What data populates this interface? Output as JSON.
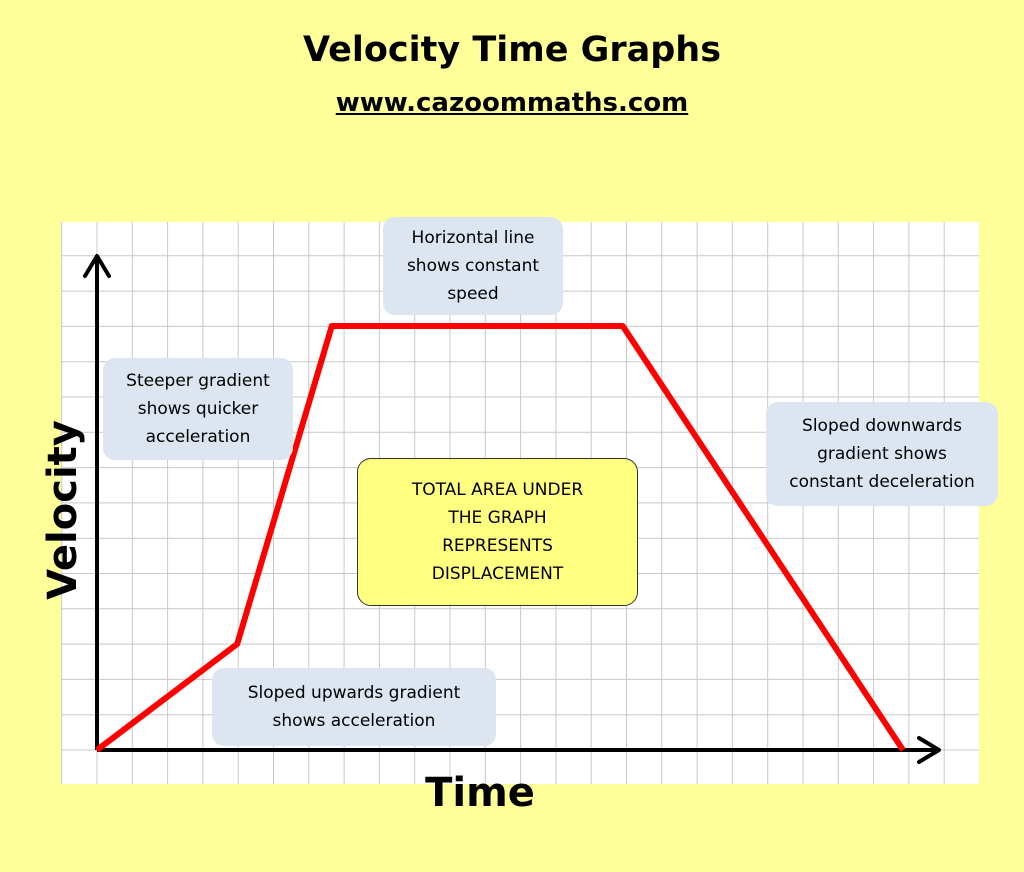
{
  "title": "Velocity Time Graphs",
  "subtitle": "www.cazoommaths.com",
  "chart_data": {
    "type": "line",
    "title": "Velocity Time Graphs",
    "xlabel": "Time",
    "ylabel": "Velocity",
    "grid": true,
    "x": [
      0,
      4,
      6.7,
      15,
      23
    ],
    "y": [
      0,
      3,
      12,
      12,
      0
    ],
    "xlim": [
      0,
      24
    ],
    "ylim": [
      0,
      14
    ],
    "series_color": "#ff0000",
    "annotations": {
      "accel": "Sloped upwards gradient\nshows acceleration",
      "steeper": "Steeper gradient\nshows quicker\nacceleration",
      "constant": "Horizontal line\nshows constant\nspeed",
      "decel": "Sloped downwards\ngradient shows\nconstant deceleration",
      "area": "TOTAL AREA UNDER\nTHE GRAPH\nREPRESENTS\nDISPLACEMENT"
    }
  }
}
